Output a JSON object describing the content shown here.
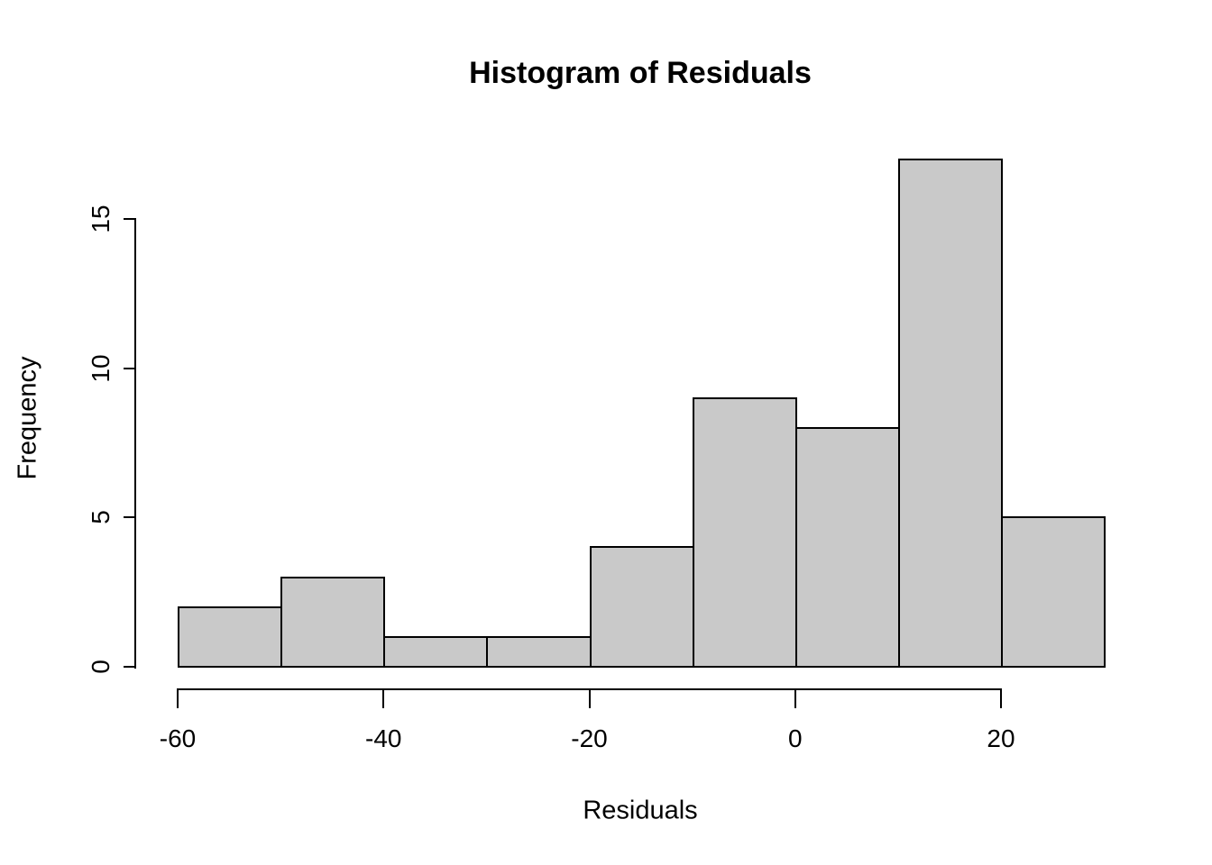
{
  "chart_data": {
    "type": "bar",
    "subtype": "histogram",
    "title": "Histogram of Residuals",
    "xlabel": "Residuals",
    "ylabel": "Frequency",
    "bin_edges": [
      -60,
      -50,
      -40,
      -30,
      -20,
      -10,
      0,
      10,
      20,
      30
    ],
    "counts": [
      2,
      3,
      1,
      1,
      4,
      9,
      8,
      17,
      5
    ],
    "categories": [
      "-60 to -50",
      "-50 to -40",
      "-40 to -30",
      "-30 to -20",
      "-20 to -10",
      "-10 to 0",
      "0 to 10",
      "10 to 20",
      "20 to 30"
    ],
    "x_ticks": [
      -60,
      -40,
      -20,
      0,
      20
    ],
    "y_ticks": [
      0,
      5,
      10,
      15
    ],
    "xlim": [
      -60,
      30
    ],
    "ylim": [
      0,
      17
    ],
    "grid": false,
    "legend": false,
    "colors": {
      "bar_fill": "#C9C9C9",
      "bar_stroke": "#000000",
      "axis": "#000000",
      "text": "#000000",
      "background": "#FFFFFF"
    }
  }
}
